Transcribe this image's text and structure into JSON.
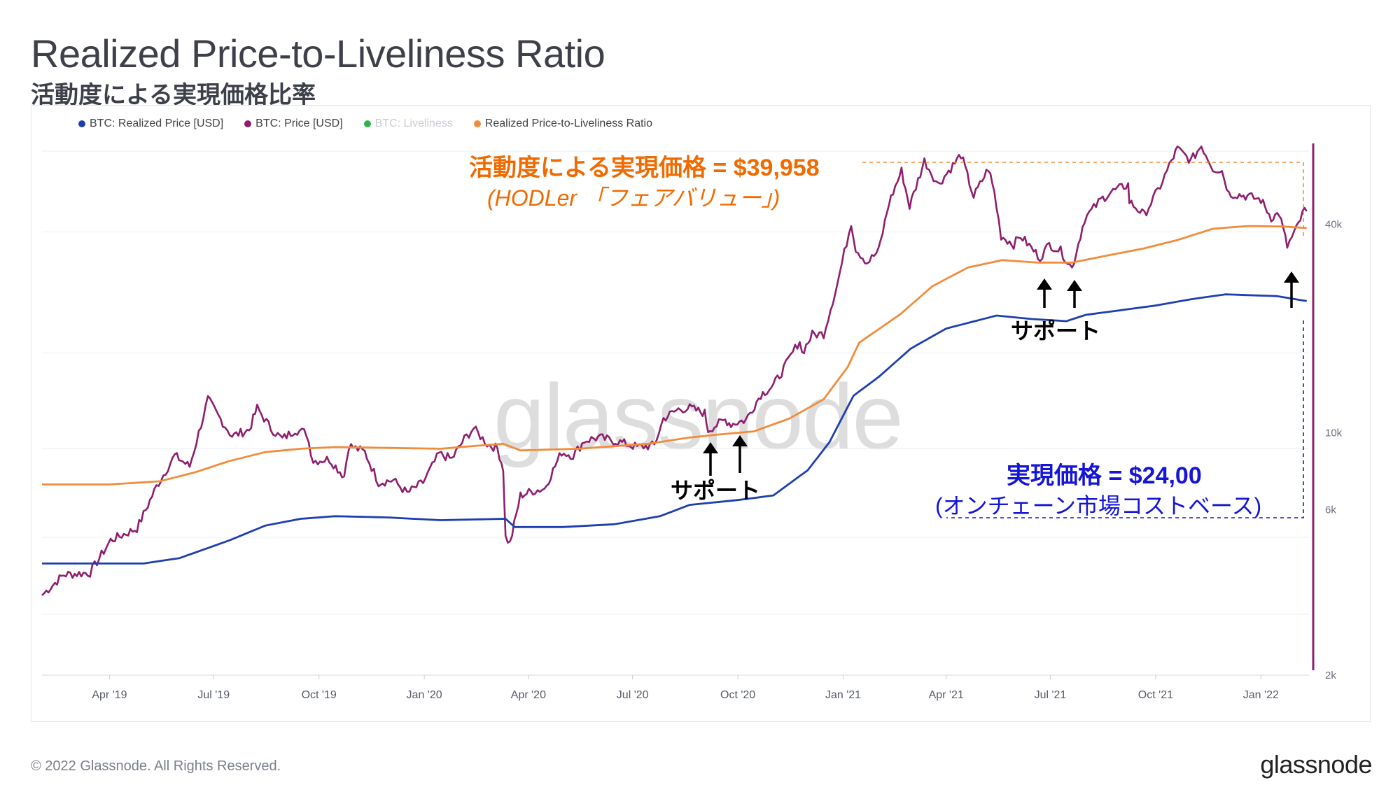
{
  "title": "Realized Price-to-Liveliness Ratio",
  "subtitle": "活動度による実現価格比率",
  "legend": [
    {
      "label": "BTC: Realized Price [USD]",
      "color": "#1f3fb0",
      "enabled": true
    },
    {
      "label": "BTC: Price [USD]",
      "color": "#8e1f6e",
      "enabled": true
    },
    {
      "label": "BTC: Liveliness",
      "color": "#2fb24a",
      "enabled": false
    },
    {
      "label": "Realized Price-to-Liveliness Ratio",
      "color": "#f28c3a",
      "enabled": true
    }
  ],
  "watermark": "glassnode",
  "annotations": {
    "ratio_title": "活動度による実現価格 = $39,958",
    "ratio_sub": "(HODLer 「フェアバリュー」)",
    "realized_title": "実現価格 = $24,00",
    "realized_sub": "(オンチェーン市場コストベース)",
    "support_1": "サポート",
    "support_2": "サポート"
  },
  "footer": {
    "copyright": "© 2022 Glassnode. All Rights Reserved.",
    "logo": "glassnode"
  },
  "colors": {
    "realized": "#1f3fb0",
    "price": "#8e1f6e",
    "ratio": "#f28c3a",
    "orange_text": "#f06a00",
    "blue_text": "#1515d8"
  },
  "chart_data": {
    "type": "line",
    "y_scale": "log",
    "ylim": [
      2000,
      70000
    ],
    "y_ticks": [
      {
        "value": 40000,
        "label": "40k"
      },
      {
        "value": 10000,
        "label": "10k"
      },
      {
        "value": 6000,
        "label": "6k"
      },
      {
        "value": 2000,
        "label": "2k"
      }
    ],
    "x_range": [
      "2019-02-01",
      "2022-02-12"
    ],
    "x_ticks": [
      {
        "date": "2019-04-01",
        "label": "Apr '19"
      },
      {
        "date": "2019-07-01",
        "label": "Jul '19"
      },
      {
        "date": "2019-10-01",
        "label": "Oct '19"
      },
      {
        "date": "2020-01-01",
        "label": "Jan '20"
      },
      {
        "date": "2020-04-01",
        "label": "Apr '20"
      },
      {
        "date": "2020-07-01",
        "label": "Jul '20"
      },
      {
        "date": "2020-10-01",
        "label": "Oct '20"
      },
      {
        "date": "2021-01-01",
        "label": "Jan '21"
      },
      {
        "date": "2021-04-01",
        "label": "Apr '21"
      },
      {
        "date": "2021-07-01",
        "label": "Jul '21"
      },
      {
        "date": "2021-10-01",
        "label": "Oct '21"
      },
      {
        "date": "2022-01-01",
        "label": "Jan '22"
      }
    ],
    "series": [
      {
        "name": "BTC: Price [USD]",
        "color": "#8e1f6e",
        "points": [
          [
            "2019-02-01",
            3400
          ],
          [
            "2019-02-20",
            3900
          ],
          [
            "2019-03-15",
            3950
          ],
          [
            "2019-04-02",
            4900
          ],
          [
            "2019-04-25",
            5300
          ],
          [
            "2019-05-12",
            7000
          ],
          [
            "2019-05-28",
            8600
          ],
          [
            "2019-06-10",
            8000
          ],
          [
            "2019-06-26",
            12500
          ],
          [
            "2019-07-05",
            11200
          ],
          [
            "2019-07-17",
            9800
          ],
          [
            "2019-08-01",
            10200
          ],
          [
            "2019-08-08",
            11800
          ],
          [
            "2019-08-20",
            10300
          ],
          [
            "2019-08-30",
            9600
          ],
          [
            "2019-09-10",
            10200
          ],
          [
            "2019-09-20",
            10000
          ],
          [
            "2019-09-26",
            8300
          ],
          [
            "2019-10-10",
            8400
          ],
          [
            "2019-10-23",
            7500
          ],
          [
            "2019-10-27",
            9200
          ],
          [
            "2019-11-10",
            8800
          ],
          [
            "2019-11-22",
            7200
          ],
          [
            "2019-12-05",
            7300
          ],
          [
            "2019-12-17",
            6700
          ],
          [
            "2019-12-31",
            7200
          ],
          [
            "2020-01-14",
            8700
          ],
          [
            "2020-01-25",
            8400
          ],
          [
            "2020-02-05",
            9600
          ],
          [
            "2020-02-13",
            10300
          ],
          [
            "2020-02-25",
            9300
          ],
          [
            "2020-03-05",
            9000
          ],
          [
            "2020-03-10",
            7900
          ],
          [
            "2020-03-12",
            5000
          ],
          [
            "2020-03-16",
            4800
          ],
          [
            "2020-03-25",
            6600
          ],
          [
            "2020-04-05",
            6800
          ],
          [
            "2020-04-15",
            6900
          ],
          [
            "2020-04-30",
            8800
          ],
          [
            "2020-05-10",
            8600
          ],
          [
            "2020-05-20",
            9500
          ],
          [
            "2020-06-01",
            9700
          ],
          [
            "2020-06-20",
            9400
          ],
          [
            "2020-07-05",
            9100
          ],
          [
            "2020-07-20",
            9200
          ],
          [
            "2020-07-28",
            11000
          ],
          [
            "2020-08-10",
            11700
          ],
          [
            "2020-08-20",
            11800
          ],
          [
            "2020-09-02",
            11400
          ],
          [
            "2020-09-05",
            10200
          ],
          [
            "2020-09-20",
            10900
          ],
          [
            "2020-09-25",
            10600
          ],
          [
            "2020-10-08",
            10900
          ],
          [
            "2020-10-21",
            12900
          ],
          [
            "2020-11-01",
            13700
          ],
          [
            "2020-11-10",
            15300
          ],
          [
            "2020-11-24",
            18500
          ],
          [
            "2020-11-26",
            17000
          ],
          [
            "2020-12-05",
            19200
          ],
          [
            "2020-12-15",
            19300
          ],
          [
            "2020-12-27",
            27000
          ],
          [
            "2021-01-08",
            40500
          ],
          [
            "2021-01-12",
            34000
          ],
          [
            "2021-01-22",
            31000
          ],
          [
            "2021-02-01",
            33500
          ],
          [
            "2021-02-10",
            46000
          ],
          [
            "2021-02-21",
            57000
          ],
          [
            "2021-02-28",
            45000
          ],
          [
            "2021-03-13",
            61000
          ],
          [
            "2021-03-25",
            52000
          ],
          [
            "2021-04-05",
            58000
          ],
          [
            "2021-04-14",
            63500
          ],
          [
            "2021-04-25",
            48000
          ],
          [
            "2021-05-08",
            58000
          ],
          [
            "2021-05-13",
            49500
          ],
          [
            "2021-05-19",
            37000
          ],
          [
            "2021-05-30",
            35000
          ],
          [
            "2021-06-05",
            37000
          ],
          [
            "2021-06-22",
            32000
          ],
          [
            "2021-06-30",
            35000
          ],
          [
            "2021-07-10",
            33500
          ],
          [
            "2021-07-20",
            29800
          ],
          [
            "2021-07-31",
            41500
          ],
          [
            "2021-08-14",
            47000
          ],
          [
            "2021-08-23",
            49500
          ],
          [
            "2021-09-07",
            52000
          ],
          [
            "2021-09-08",
            46500
          ],
          [
            "2021-09-21",
            42500
          ],
          [
            "2021-10-05",
            51500
          ],
          [
            "2021-10-15",
            61000
          ],
          [
            "2021-10-20",
            66000
          ],
          [
            "2021-11-01",
            61000
          ],
          [
            "2021-11-10",
            67500
          ],
          [
            "2021-11-20",
            58000
          ],
          [
            "2021-11-28",
            57000
          ],
          [
            "2021-12-04",
            49000
          ],
          [
            "2021-12-15",
            48500
          ],
          [
            "2021-12-22",
            48000
          ],
          [
            "2022-01-01",
            47000
          ],
          [
            "2022-01-10",
            41800
          ],
          [
            "2022-01-17",
            43000
          ],
          [
            "2022-01-24",
            34500
          ],
          [
            "2022-02-01",
            38700
          ],
          [
            "2022-02-08",
            44000
          ],
          [
            "2022-02-10",
            43600
          ]
        ]
      },
      {
        "name": "Realized Price-to-Liveliness Ratio",
        "color": "#f28c3a",
        "points": [
          [
            "2019-02-01",
            7100
          ],
          [
            "2019-04-01",
            7100
          ],
          [
            "2019-05-15",
            7250
          ],
          [
            "2019-06-15",
            7700
          ],
          [
            "2019-07-15",
            8300
          ],
          [
            "2019-08-15",
            8800
          ],
          [
            "2019-09-15",
            9000
          ],
          [
            "2019-10-15",
            9100
          ],
          [
            "2019-12-01",
            9050
          ],
          [
            "2020-01-15",
            9000
          ],
          [
            "2020-02-20",
            9200
          ],
          [
            "2020-03-10",
            9300
          ],
          [
            "2020-03-25",
            8900
          ],
          [
            "2020-05-15",
            9000
          ],
          [
            "2020-06-15",
            9150
          ],
          [
            "2020-07-15",
            9300
          ],
          [
            "2020-08-20",
            9700
          ],
          [
            "2020-09-15",
            9900
          ],
          [
            "2020-10-15",
            10100
          ],
          [
            "2020-11-15",
            11000
          ],
          [
            "2020-12-15",
            12500
          ],
          [
            "2021-01-05",
            15500
          ],
          [
            "2021-01-15",
            18200
          ],
          [
            "2021-02-20",
            22000
          ],
          [
            "2021-03-20",
            26500
          ],
          [
            "2021-04-20",
            30000
          ],
          [
            "2021-05-20",
            31500
          ],
          [
            "2021-06-20",
            31000
          ],
          [
            "2021-07-20",
            31000
          ],
          [
            "2021-08-20",
            32500
          ],
          [
            "2021-09-20",
            34000
          ],
          [
            "2021-10-20",
            36000
          ],
          [
            "2021-11-20",
            38800
          ],
          [
            "2021-12-20",
            39500
          ],
          [
            "2022-01-20",
            39400
          ],
          [
            "2022-02-10",
            39000
          ]
        ]
      },
      {
        "name": "BTC: Realized Price [USD]",
        "color": "#1f3fb0",
        "points": [
          [
            "2019-02-01",
            4200
          ],
          [
            "2019-05-01",
            4200
          ],
          [
            "2019-06-01",
            4350
          ],
          [
            "2019-07-15",
            4900
          ],
          [
            "2019-08-15",
            5400
          ],
          [
            "2019-09-15",
            5650
          ],
          [
            "2019-10-15",
            5750
          ],
          [
            "2019-12-01",
            5700
          ],
          [
            "2020-01-15",
            5600
          ],
          [
            "2020-03-12",
            5650
          ],
          [
            "2020-03-20",
            5350
          ],
          [
            "2020-05-01",
            5350
          ],
          [
            "2020-06-15",
            5450
          ],
          [
            "2020-07-25",
            5750
          ],
          [
            "2020-08-20",
            6200
          ],
          [
            "2020-10-01",
            6400
          ],
          [
            "2020-11-01",
            6600
          ],
          [
            "2020-12-01",
            7800
          ],
          [
            "2020-12-20",
            9400
          ],
          [
            "2021-01-10",
            12800
          ],
          [
            "2021-02-01",
            14500
          ],
          [
            "2021-03-01",
            17500
          ],
          [
            "2021-04-01",
            20000
          ],
          [
            "2021-05-15",
            21800
          ],
          [
            "2021-06-15",
            21300
          ],
          [
            "2021-07-15",
            21000
          ],
          [
            "2021-08-01",
            21900
          ],
          [
            "2021-09-01",
            22600
          ],
          [
            "2021-10-01",
            23300
          ],
          [
            "2021-11-01",
            24300
          ],
          [
            "2021-12-01",
            25100
          ],
          [
            "2022-01-15",
            24800
          ],
          [
            "2022-02-10",
            24000
          ]
        ]
      }
    ]
  }
}
